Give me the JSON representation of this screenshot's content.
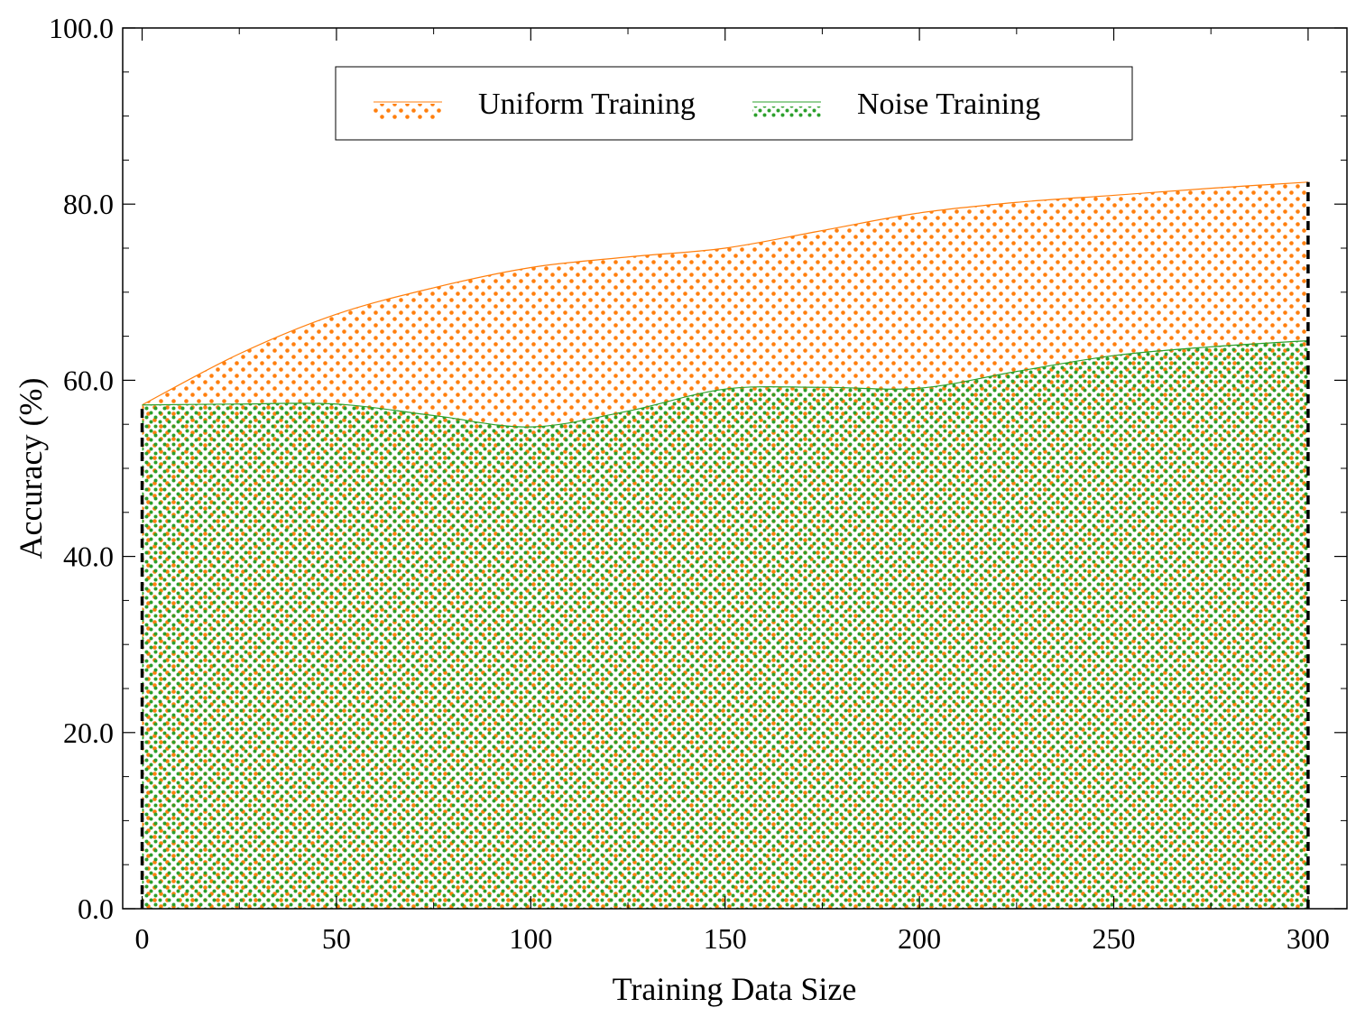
{
  "chart_data": {
    "type": "area",
    "xlabel": "Training Data Size",
    "ylabel": "Accuracy (%)",
    "xlim": [
      -5,
      310
    ],
    "ylim": [
      0,
      100
    ],
    "xticks": [
      0,
      50,
      100,
      150,
      200,
      250,
      300
    ],
    "xtick_labels": [
      "0",
      "50",
      "100",
      "150",
      "200",
      "250",
      "300"
    ],
    "yticks": [
      0,
      20,
      40,
      60,
      80,
      100
    ],
    "ytick_labels": [
      "0.0",
      "20.0",
      "40.0",
      "60.0",
      "80.0",
      "100.0"
    ],
    "grid": false,
    "legend_position": "top-center",
    "x": [
      0,
      25,
      50,
      75,
      100,
      125,
      150,
      175,
      200,
      225,
      250,
      275,
      300
    ],
    "series": [
      {
        "name": "Uniform Training",
        "color": "#ff7f0e",
        "hatch": "dots",
        "values": [
          57.2,
          63.0,
          67.5,
          70.5,
          72.8,
          74.0,
          75.0,
          77.0,
          79.0,
          80.2,
          81.0,
          81.8,
          82.5
        ]
      },
      {
        "name": "Noise Training",
        "color": "#2ca02c",
        "hatch": "dots",
        "values": [
          57.2,
          57.3,
          57.3,
          56.0,
          54.7,
          56.5,
          59.0,
          59.2,
          59.1,
          61.0,
          62.8,
          63.8,
          64.5
        ]
      }
    ],
    "markers": [
      {
        "x": 0,
        "style": "dashed",
        "color": "#000000"
      },
      {
        "x": 300,
        "style": "dashed",
        "color": "#000000"
      }
    ]
  }
}
